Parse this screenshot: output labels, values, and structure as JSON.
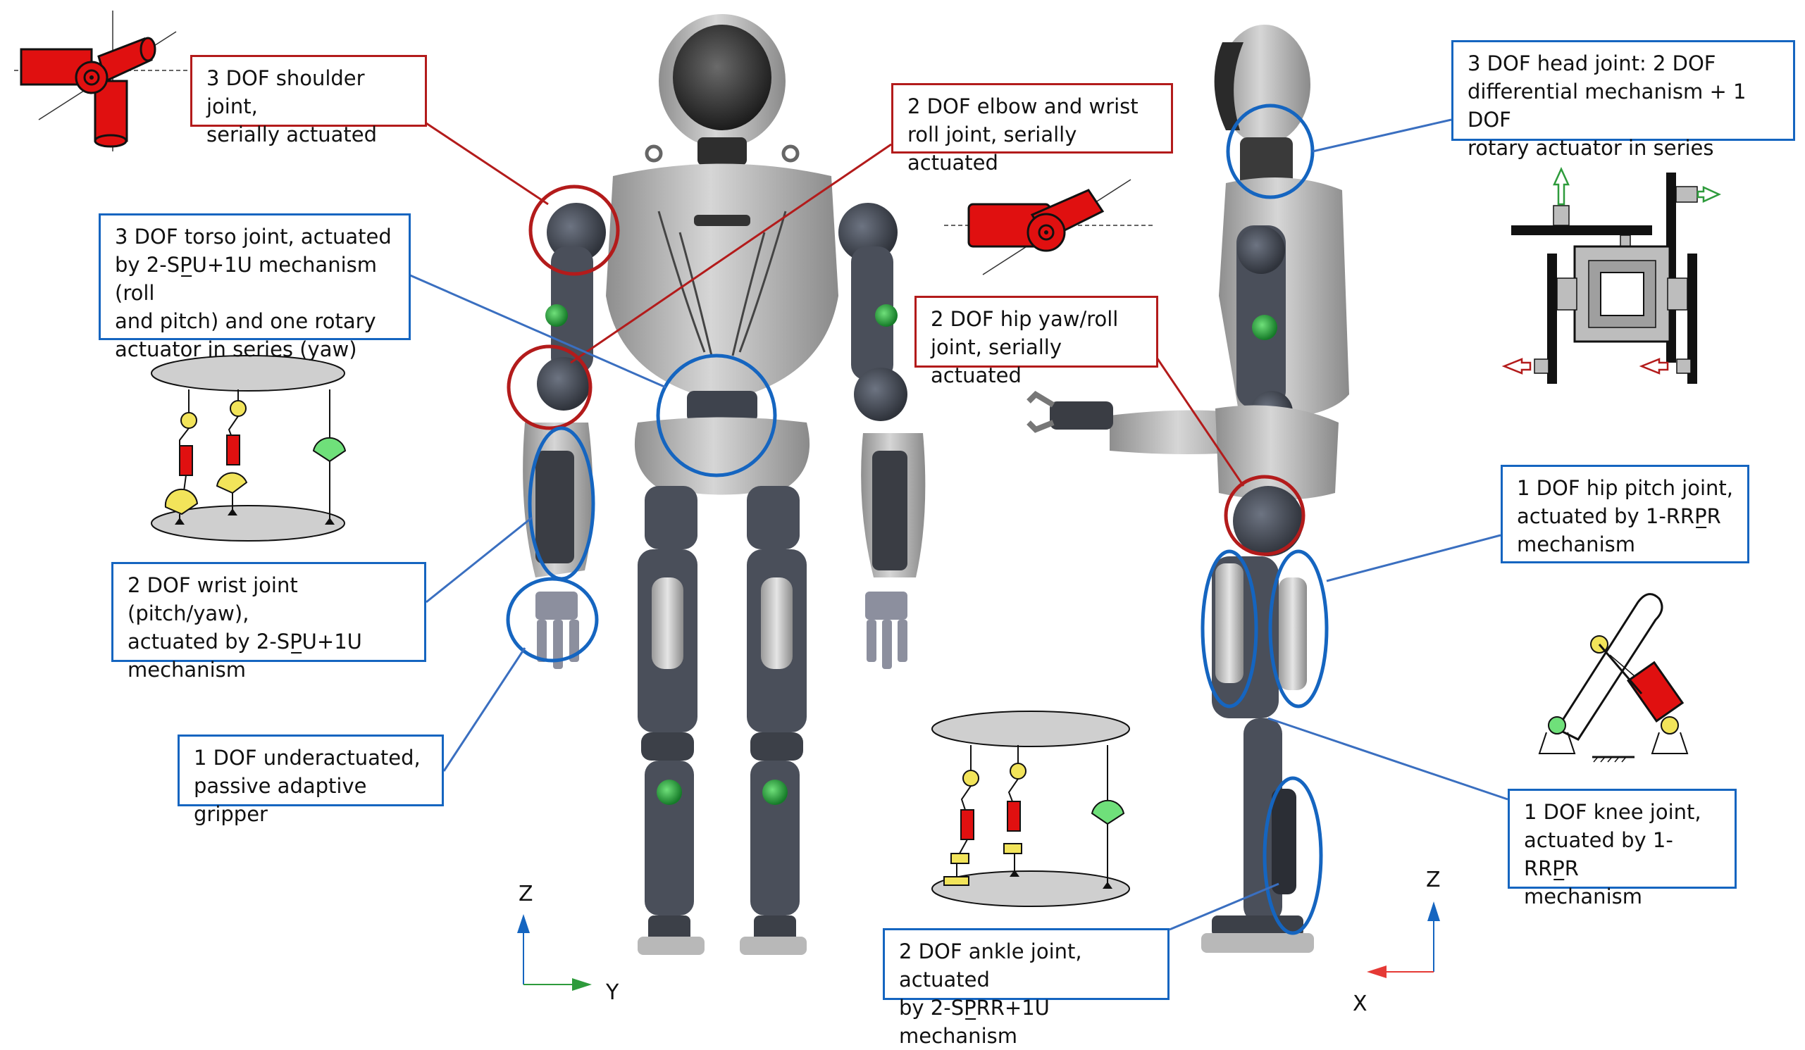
{
  "callouts": {
    "shoulder": "3 DOF shoulder joint,\nserially actuated",
    "elbow": "2 DOF elbow and wrist\nroll joint, serially actuated",
    "torso": "3 DOF torso joint, actuated\nby 2-SP̲U+1U mechanism (roll\nand pitch) and one rotary\nactuator in series (yaw)",
    "hip_yaw": "2 DOF hip yaw/roll\njoint, serially actuated",
    "head": "3 DOF head joint: 2 DOF\ndifferential mechanism + 1 DOF\nrotary actuator in series",
    "wrist": "2 DOF wrist joint (pitch/yaw),\nactuated by 2-SP̲U+1U\nmechanism",
    "gripper": "1 DOF underactuated,\npassive adaptive gripper",
    "hip_pitch": "1 DOF hip pitch joint,\nactuated by 1-RRP̲R\nmechanism",
    "knee": "1 DOF knee joint,\nactuated by 1-RRP̲R\nmechanism",
    "ankle": "2 DOF ankle joint, actuated\nby 2-SP̲RR+1U mechanism"
  },
  "axes": {
    "front_vertical": "Z",
    "front_horizontal": "Y",
    "side_vertical": "Z",
    "side_horizontal": "X"
  },
  "colors": {
    "red_outline": "#b31b1b",
    "blue_outline": "#1565c0",
    "actuator_red": "#e01010",
    "passive_yellow": "#f2e45a",
    "rotary_green": "#6fe07a",
    "robot_body": "#b9b9b9",
    "robot_frame": "#4a4f5a"
  }
}
